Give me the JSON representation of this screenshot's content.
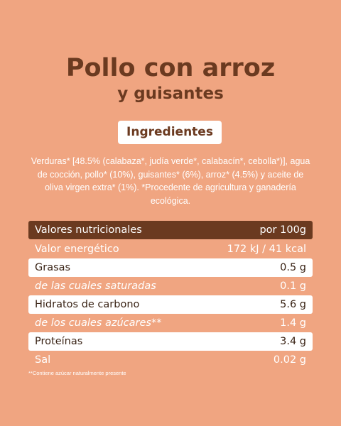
{
  "header": {
    "title": "Pollo con arroz",
    "subtitle": "y guisantes"
  },
  "ingredients": {
    "heading": "Ingredientes",
    "text": "Verduras* [48.5% (calabaza*, judía verde*, calabacín*, cebolla*)], agua de cocción, pollo* (10%), guisantes* (6%), arroz* (4.5%) y aceite de oliva virgen extra* (1%). *Procedente de agricultura y ganadería ecológica."
  },
  "table": {
    "header": [
      "Valores nutricionales",
      "por 100g"
    ],
    "rows": [
      [
        "Valor energético",
        "172 kJ / 41 kcal"
      ],
      [
        "Grasas",
        "0.5 g"
      ],
      [
        "de las cuales saturadas",
        "0.1 g"
      ],
      [
        "Hidratos de carbono",
        "5.6 g"
      ],
      [
        "de los cuales azúcares**",
        "1.4 g"
      ],
      [
        "Proteínas",
        "3.4 g"
      ],
      [
        "Sal",
        "0.02 g"
      ]
    ]
  },
  "footnote": "**Contiene azúcar naturalmente presente"
}
